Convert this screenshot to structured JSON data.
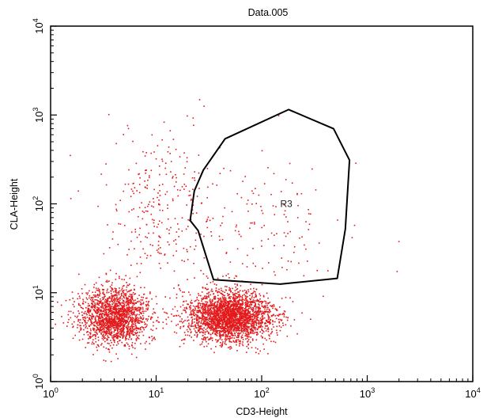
{
  "chart_data": {
    "type": "scatter",
    "title": "Data.005",
    "xlabel": "CD3-Height",
    "ylabel": "CLA-Height",
    "xscale": "log",
    "yscale": "log",
    "xlim": [
      1,
      10000
    ],
    "ylim": [
      1,
      10000
    ],
    "x_ticks": [
      {
        "base": "10",
        "exp": "0",
        "value": 1
      },
      {
        "base": "10",
        "exp": "1",
        "value": 10
      },
      {
        "base": "10",
        "exp": "2",
        "value": 100
      },
      {
        "base": "10",
        "exp": "3",
        "value": 1000
      },
      {
        "base": "10",
        "exp": "4",
        "value": 10000
      }
    ],
    "y_ticks": [
      {
        "base": "10",
        "exp": "0",
        "value": 1
      },
      {
        "base": "10",
        "exp": "1",
        "value": 10
      },
      {
        "base": "10",
        "exp": "2",
        "value": 100
      },
      {
        "base": "10",
        "exp": "3",
        "value": 1000
      },
      {
        "base": "10",
        "exp": "4",
        "value": 10000
      }
    ],
    "point_color": "#e31a1c",
    "populations": [
      {
        "center": [
          4,
          5.5
        ],
        "spread_log10": [
          0.16,
          0.16
        ],
        "count": 1800
      },
      {
        "center": [
          50,
          5.5
        ],
        "spread_log10": [
          0.2,
          0.14
        ],
        "count": 2600
      },
      {
        "center": [
          10,
          90
        ],
        "spread_log10": [
          0.28,
          0.45
        ],
        "count": 260
      },
      {
        "center": [
          100,
          60
        ],
        "spread_log10": [
          0.45,
          0.4
        ],
        "count": 160
      }
    ],
    "gate": {
      "name": "R3",
      "label": "R3",
      "label_position": [
        150,
        100
      ],
      "vertices": [
        [
          180,
          1150
        ],
        [
          480,
          700
        ],
        [
          680,
          310
        ],
        [
          620,
          52
        ],
        [
          520,
          14.5
        ],
        [
          150,
          12.5
        ],
        [
          35,
          14
        ],
        [
          25,
          50
        ],
        [
          21,
          65
        ],
        [
          23,
          140
        ],
        [
          28,
          240
        ],
        [
          45,
          540
        ]
      ]
    }
  }
}
